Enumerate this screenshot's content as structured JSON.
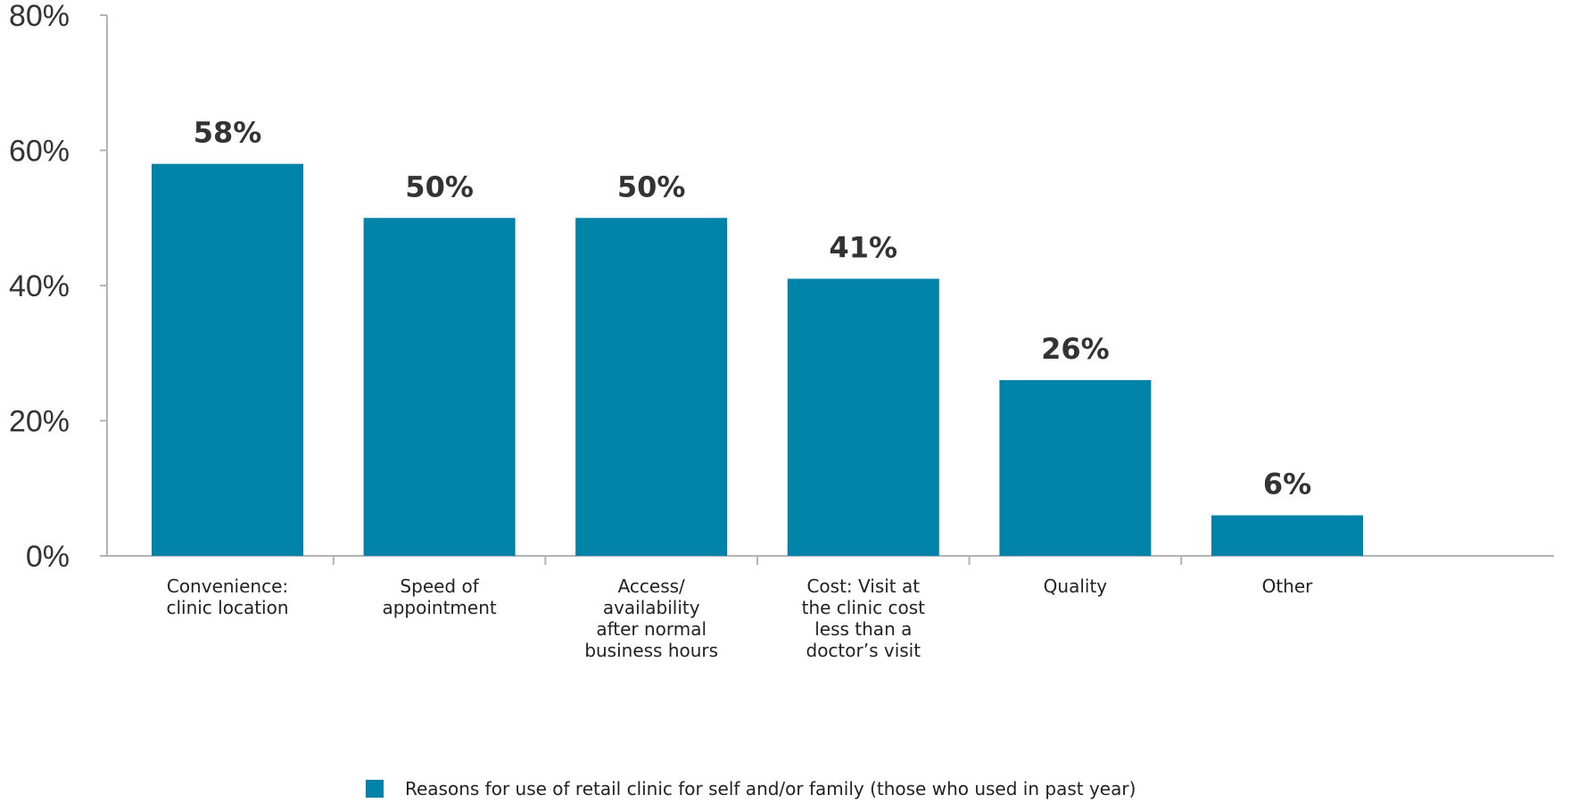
{
  "chart_data": {
    "type": "bar",
    "categories": [
      [
        "Convenience:",
        "clinic location"
      ],
      [
        "Speed of",
        "appointment"
      ],
      [
        "Access/",
        "availability",
        "after normal",
        "business hours"
      ],
      [
        "Cost: Visit at",
        "the clinic cost",
        "less than a",
        "doctor’s visit"
      ],
      [
        "Quality"
      ],
      [
        "Other"
      ]
    ],
    "series": [
      {
        "name": "Reasons for use of retail clinic for self and/or family (those who used in past year)",
        "values": [
          58,
          50,
          50,
          41,
          26,
          6
        ],
        "data_labels": [
          "58%",
          "50%",
          "50%",
          "41%",
          "26%",
          "6%"
        ],
        "color": "#0083a9"
      }
    ],
    "y_ticks": [
      {
        "value": 0,
        "label": "0%"
      },
      {
        "value": 20,
        "label": "20%"
      },
      {
        "value": 40,
        "label": "40%"
      },
      {
        "value": 60,
        "label": "60%"
      },
      {
        "value": 80,
        "label": "80%"
      }
    ],
    "ylim": [
      0,
      80
    ],
    "grid": false,
    "legend_position": "bottom-center",
    "axis_color": "#b3b3b3"
  }
}
